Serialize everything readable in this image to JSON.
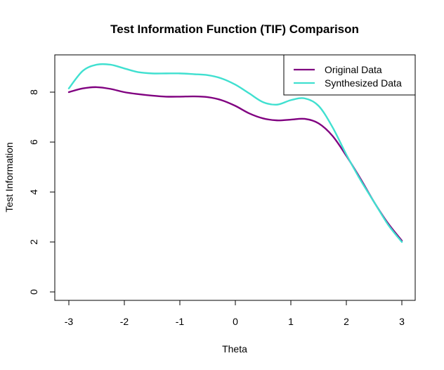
{
  "chart_data": {
    "type": "line",
    "title": "Test Information Function (TIF) Comparison",
    "xlabel": "Theta",
    "ylabel": "Test Information",
    "xlim": [
      -3,
      3
    ],
    "ylim": [
      0,
      9.2
    ],
    "xticks": [
      -3,
      -2,
      -1,
      0,
      1,
      2,
      3
    ],
    "yticks": [
      0,
      2,
      4,
      6,
      8
    ],
    "x_tick_labels": [
      "-3",
      "-2",
      "-1",
      "0",
      "1",
      "2",
      "3"
    ],
    "y_tick_labels": [
      "0",
      "2",
      "4",
      "6",
      "8"
    ],
    "grid": false,
    "legend_position": "top-right",
    "x": [
      -3.0,
      -2.75,
      -2.5,
      -2.25,
      -2.0,
      -1.75,
      -1.5,
      -1.25,
      -1.0,
      -0.75,
      -0.5,
      -0.25,
      0.0,
      0.25,
      0.5,
      0.75,
      1.0,
      1.25,
      1.5,
      1.75,
      2.0,
      2.25,
      2.5,
      2.75,
      3.0
    ],
    "series": [
      {
        "name": "Original Data",
        "color": "#800080",
        "values": [
          8.0,
          8.15,
          8.2,
          8.13,
          8.0,
          7.92,
          7.86,
          7.82,
          7.82,
          7.83,
          7.8,
          7.68,
          7.45,
          7.15,
          6.95,
          6.87,
          6.9,
          6.93,
          6.75,
          6.25,
          5.45,
          4.55,
          3.6,
          2.75,
          2.05
        ]
      },
      {
        "name": "Synthesized Data",
        "color": "#40E0D0",
        "values": [
          8.15,
          8.85,
          9.1,
          9.1,
          8.95,
          8.8,
          8.75,
          8.75,
          8.75,
          8.72,
          8.68,
          8.55,
          8.3,
          7.95,
          7.6,
          7.5,
          7.68,
          7.75,
          7.45,
          6.6,
          5.5,
          4.5,
          3.6,
          2.7,
          2.0
        ]
      }
    ]
  }
}
